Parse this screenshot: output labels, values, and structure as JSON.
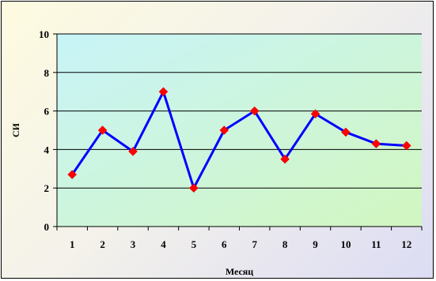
{
  "chart_data": {
    "type": "line",
    "title": "",
    "xlabel": "Месяц",
    "ylabel": "СИ",
    "categories": [
      "1",
      "2",
      "3",
      "4",
      "5",
      "6",
      "7",
      "8",
      "9",
      "10",
      "11",
      "12"
    ],
    "series": [
      {
        "name": "",
        "values": [
          2.7,
          5.0,
          3.9,
          7.0,
          2.0,
          5.0,
          6.0,
          3.5,
          5.85,
          4.9,
          4.3,
          4.2
        ]
      }
    ],
    "ylim": [
      0,
      10
    ],
    "yticks": [
      "0",
      "2",
      "4",
      "6",
      "8",
      "10"
    ],
    "grid": true,
    "legend": "none",
    "colors": {
      "line": "#0000ff",
      "marker": "#ff0000",
      "plot_bg_start": "#c8f4f8",
      "plot_bg_end": "#d2f6c0",
      "gridline": "#000000"
    }
  }
}
